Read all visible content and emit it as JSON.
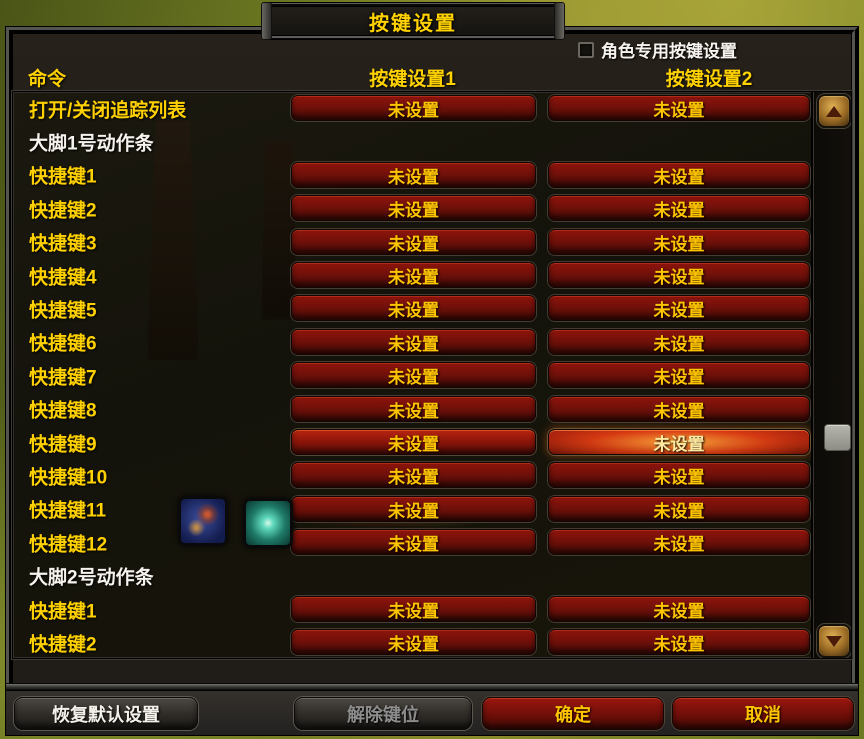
{
  "window": {
    "title": "按键设置"
  },
  "options": {
    "char_specific_label": "角色专用按键设置",
    "char_specific_checked": false
  },
  "table": {
    "headers": {
      "command": "命令",
      "set1": "按键设置1",
      "set2": "按键设置2"
    }
  },
  "rows": [
    {
      "label": "打开/关闭追踪列表",
      "type": "binding",
      "b1": "未设置",
      "b2": "未设置"
    },
    {
      "label": "大脚1号动作条",
      "type": "section"
    },
    {
      "label": "快捷键1",
      "type": "binding",
      "b1": "未设置",
      "b2": "未设置"
    },
    {
      "label": "快捷键2",
      "type": "binding",
      "b1": "未设置",
      "b2": "未设置"
    },
    {
      "label": "快捷键3",
      "type": "binding",
      "b1": "未设置",
      "b2": "未设置"
    },
    {
      "label": "快捷键4",
      "type": "binding",
      "b1": "未设置",
      "b2": "未设置"
    },
    {
      "label": "快捷键5",
      "type": "binding",
      "b1": "未设置",
      "b2": "未设置"
    },
    {
      "label": "快捷键6",
      "type": "binding",
      "b1": "未设置",
      "b2": "未设置"
    },
    {
      "label": "快捷键7",
      "type": "binding",
      "b1": "未设置",
      "b2": "未设置"
    },
    {
      "label": "快捷键8",
      "type": "binding",
      "b1": "未设置",
      "b2": "未设置"
    },
    {
      "label": "快捷键9",
      "type": "binding",
      "b1": "未设置",
      "b2": "未设置",
      "b1_state": "bright",
      "b2_state": "glow"
    },
    {
      "label": "快捷键10",
      "type": "binding",
      "b1": "未设置",
      "b2": "未设置"
    },
    {
      "label": "快捷键11",
      "type": "binding",
      "b1": "未设置",
      "b2": "未设置"
    },
    {
      "label": "快捷键12",
      "type": "binding",
      "b1": "未设置",
      "b2": "未设置"
    },
    {
      "label": "大脚2号动作条",
      "type": "section"
    },
    {
      "label": "快捷键1",
      "type": "binding",
      "b1": "未设置",
      "b2": "未设置"
    },
    {
      "label": "快捷键2",
      "type": "binding",
      "b1": "未设置",
      "b2": "未设置"
    }
  ],
  "footer": {
    "restore_label": "恢复默认设置",
    "unbind_label": "解除键位",
    "ok_label": "确定",
    "cancel_label": "取消"
  },
  "colors": {
    "gold": "#ffd200",
    "button_red": "#7d120a",
    "hover_glow": "#ff8c2a",
    "white_text": "#f6f2ee",
    "disabled_text": "#8d8d8d"
  }
}
